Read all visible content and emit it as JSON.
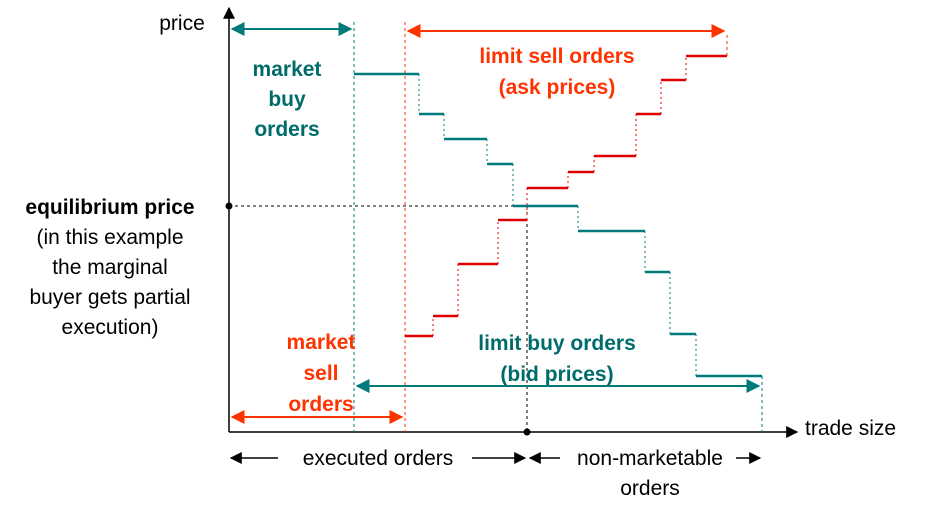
{
  "axes": {
    "y_label": "price",
    "x_label": "trade size"
  },
  "equilibrium": {
    "title": "equilibrium price",
    "note_lines": [
      "(in this example",
      "the marginal",
      "buyer gets partial",
      "execution)"
    ]
  },
  "market_buy": {
    "lines": [
      "market",
      "buy",
      "orders"
    ]
  },
  "limit_sell": {
    "lines": [
      "limit sell orders",
      "(ask prices)"
    ]
  },
  "market_sell": {
    "lines": [
      "market",
      "sell",
      "orders"
    ]
  },
  "limit_buy": {
    "lines": [
      "limit buy orders",
      "(bid prices)"
    ]
  },
  "bottom": {
    "executed": "executed orders",
    "non_marketable_lines": [
      "non-marketable",
      "orders"
    ]
  },
  "colors": {
    "teal": "#007a7a",
    "teal_text": "#006b6b",
    "red": "#e00000",
    "orange_red": "#ff3300",
    "black": "#000000"
  }
}
